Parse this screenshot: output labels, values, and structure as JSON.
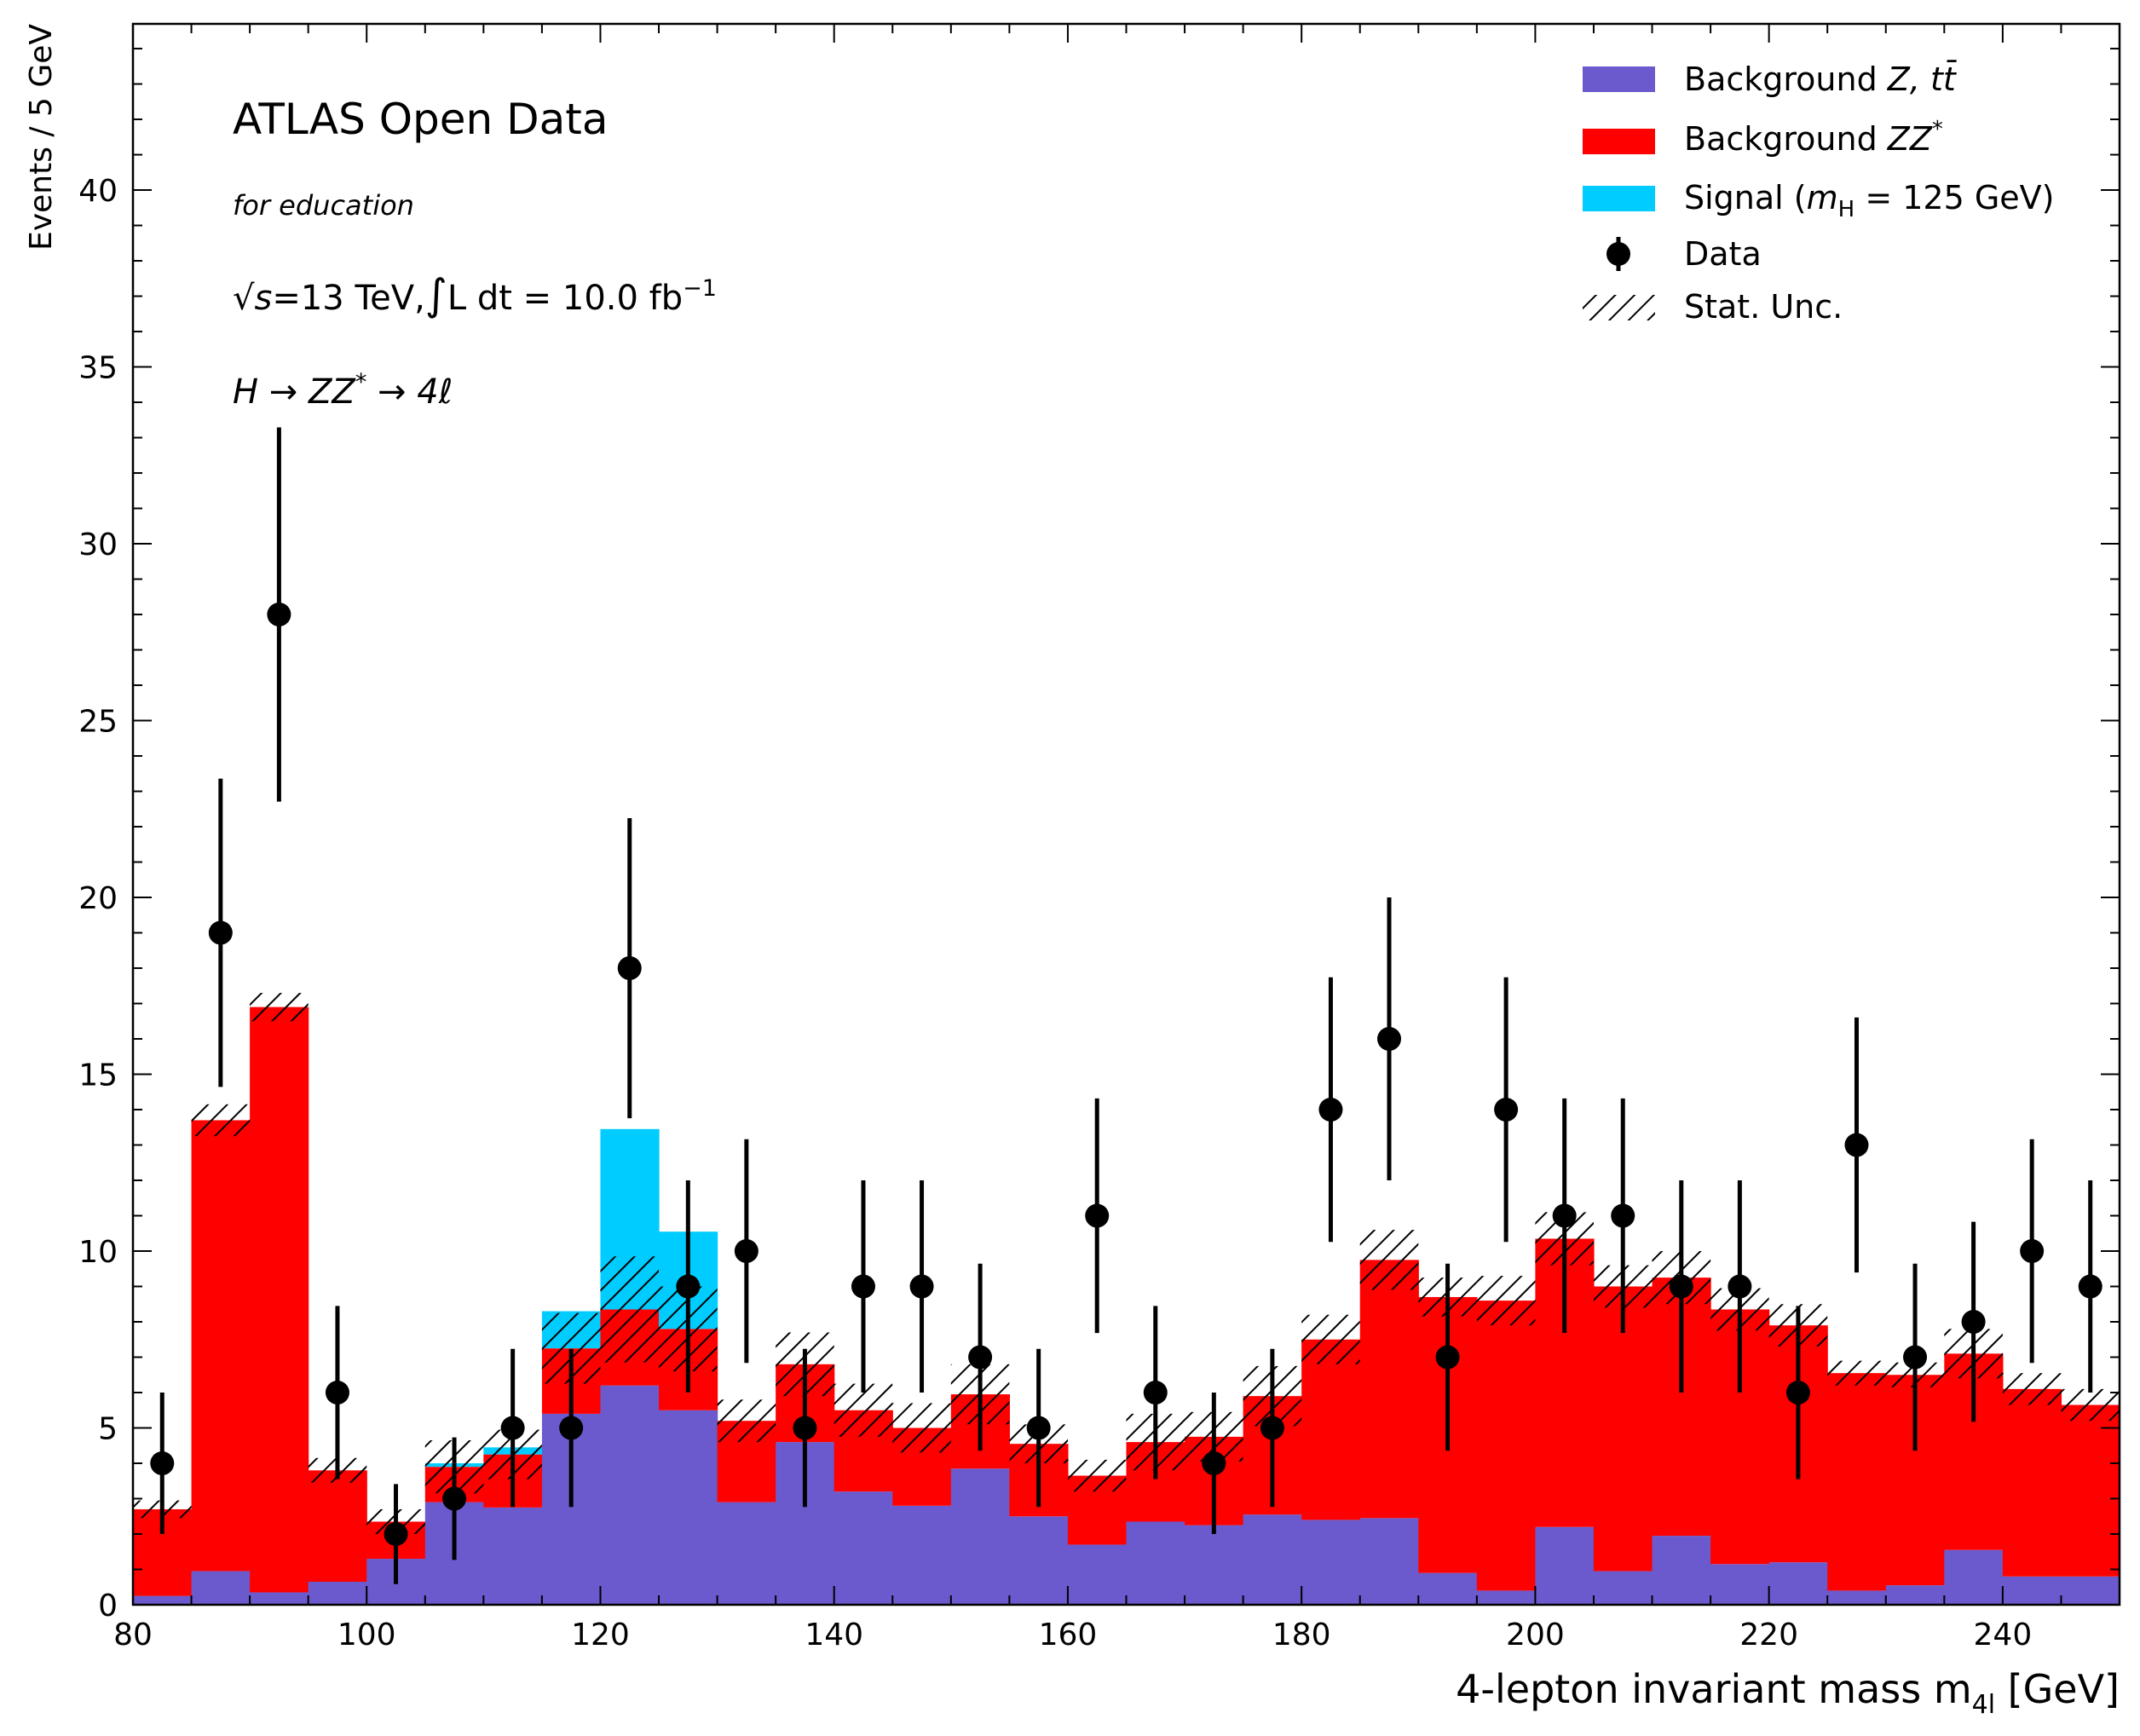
{
  "chart_data": {
    "type": "bar",
    "stacked": true,
    "xlabel_main": "4-lepton invariant mass m",
    "xlabel_sub": "4l",
    "xlabel_unit": " [GeV]",
    "ylabel": "Events / 5 GeV",
    "xlim": [
      80,
      250
    ],
    "ylim": [
      0,
      44.7
    ],
    "bin_width": 5,
    "xticks": [
      "80",
      "100",
      "120",
      "140",
      "160",
      "180",
      "200",
      "220",
      "240"
    ],
    "xtick_values": [
      80,
      100,
      120,
      140,
      160,
      180,
      200,
      220,
      240
    ],
    "yticks": [
      "0",
      "5",
      "10",
      "15",
      "20",
      "25",
      "30",
      "35",
      "40"
    ],
    "ytick_values": [
      0,
      5,
      10,
      15,
      20,
      25,
      30,
      35,
      40
    ],
    "bin_edges": [
      80,
      85,
      90,
      95,
      100,
      105,
      110,
      115,
      120,
      125,
      130,
      135,
      140,
      145,
      150,
      155,
      160,
      165,
      170,
      175,
      180,
      185,
      190,
      195,
      200,
      205,
      210,
      215,
      220,
      225,
      230,
      235,
      240,
      245,
      250
    ],
    "series": [
      {
        "name": "Background Z, tt̄",
        "color": "#6a5acd",
        "values": [
          0.25,
          0.95,
          0.35,
          0.65,
          1.3,
          2.9,
          2.75,
          5.4,
          6.2,
          5.5,
          2.9,
          4.6,
          3.2,
          2.8,
          3.85,
          2.5,
          1.7,
          2.35,
          2.25,
          2.55,
          2.4,
          2.45,
          0.9,
          0.4,
          2.2,
          0.95,
          1.95,
          1.15,
          1.2,
          0.4,
          0.55,
          1.55,
          0.8,
          0.8
        ]
      },
      {
        "name": "Background ZZ*",
        "color": "#ff0000",
        "values": [
          2.45,
          12.75,
          16.55,
          3.15,
          1.05,
          1.0,
          1.5,
          1.85,
          2.15,
          2.3,
          2.3,
          2.2,
          2.3,
          2.2,
          2.1,
          2.05,
          1.95,
          2.25,
          2.5,
          3.35,
          5.1,
          7.3,
          7.8,
          8.2,
          8.15,
          8.05,
          7.3,
          7.2,
          6.7,
          6.15,
          5.95,
          5.55,
          5.3,
          4.85
        ]
      },
      {
        "name": "Signal (m_H = 125 GeV)",
        "color": "#00ccff",
        "values": [
          0,
          0,
          0,
          0,
          0,
          0.1,
          0.2,
          1.05,
          5.1,
          2.75,
          0,
          0,
          0,
          0,
          0,
          0,
          0,
          0,
          0,
          0,
          0,
          0,
          0,
          0,
          0,
          0,
          0,
          0,
          0,
          0,
          0,
          0,
          0,
          0
        ]
      }
    ],
    "stat_unc": [
      0.25,
      0.45,
      0.4,
      0.35,
      0.35,
      0.75,
      0.7,
      1.0,
      1.5,
      1.2,
      0.6,
      0.9,
      0.75,
      0.7,
      0.85,
      0.55,
      0.45,
      0.8,
      0.7,
      0.85,
      0.7,
      0.85,
      0.55,
      0.7,
      0.75,
      0.6,
      0.75,
      0.6,
      0.6,
      0.35,
      0.35,
      0.7,
      0.45,
      0.45
    ],
    "data": {
      "name": "Data",
      "x": [
        82.5,
        87.5,
        92.5,
        97.5,
        102.5,
        107.5,
        112.5,
        117.5,
        122.5,
        127.5,
        132.5,
        137.5,
        142.5,
        147.5,
        152.5,
        157.5,
        162.5,
        167.5,
        172.5,
        177.5,
        182.5,
        187.5,
        192.5,
        197.5,
        202.5,
        207.5,
        212.5,
        217.5,
        222.5,
        227.5,
        232.5,
        237.5,
        242.5,
        247.5
      ],
      "y": [
        4,
        19,
        28,
        6,
        2,
        3,
        5,
        5,
        18,
        9,
        10,
        5,
        9,
        9,
        7,
        5,
        11,
        6,
        4,
        5,
        14,
        16,
        7,
        14,
        11,
        11,
        9,
        9,
        6,
        13,
        7,
        8,
        10,
        9
      ]
    },
    "legend": {
      "placement": "top-right",
      "entries": [
        {
          "pre": "Background ",
          "math": "Z, tt̄",
          "post": ""
        },
        {
          "pre": "Background ",
          "math": "ZZ",
          "sup": "*",
          "post": ""
        },
        {
          "pre": "Signal (",
          "math": "m",
          "sub": "H",
          "post": " = 125 GeV)"
        },
        {
          "pre": "Data",
          "math": "",
          "post": ""
        },
        {
          "pre": "Stat. Unc.",
          "math": "",
          "post": ""
        }
      ]
    },
    "annotations": {
      "title": "ATLAS Open Data",
      "subtitle": "for education",
      "lumi_sqrt": "√",
      "lumi_s": "s",
      "lumi_eq": "=13 TeV,",
      "lumi_int": "∫",
      "lumi_rest": "L dt = 10.0 fb",
      "lumi_exp": "−1",
      "process_a": "H → ZZ",
      "process_sup": "*",
      "process_b": " → 4ℓ"
    },
    "grid": false
  }
}
